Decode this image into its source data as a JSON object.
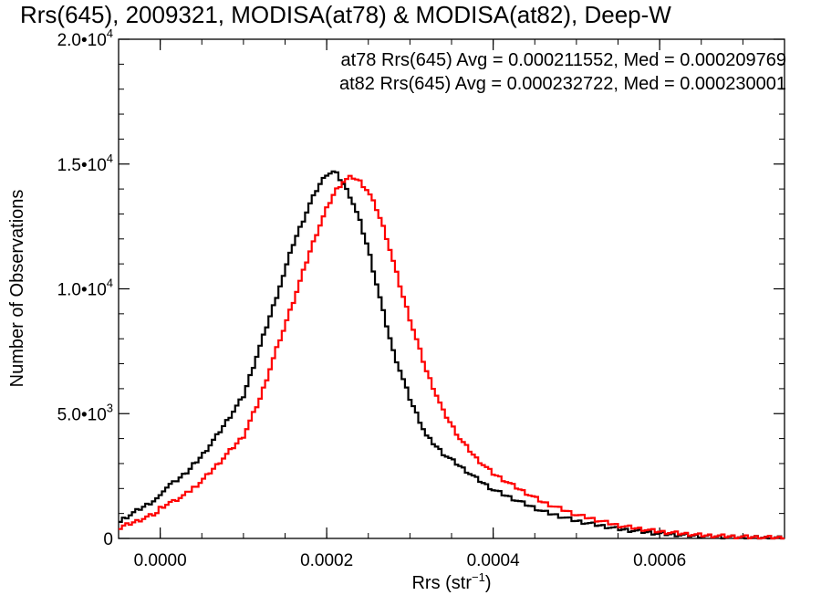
{
  "chart_data": {
    "type": "line",
    "title": "Rrs(645), 2009321, MODISA(at78) & MODISA(at82), Deep-W",
    "xlabel": "Rrs (str",
    "xlabel_sup": "−1",
    "xlabel_close": ")",
    "ylabel": "Number of Observations",
    "xlim": [
      -5e-05,
      0.00075
    ],
    "ylim": [
      0,
      20000
    ],
    "x_ticks": [
      {
        "value": 0.0,
        "label": "0.0000"
      },
      {
        "value": 0.0002,
        "label": "0.0002"
      },
      {
        "value": 0.0004,
        "label": "0.0004"
      },
      {
        "value": 0.0006,
        "label": "0.0006"
      }
    ],
    "y_ticks": [
      {
        "value": 0,
        "label": "0",
        "sup": ""
      },
      {
        "value": 5000,
        "label": "5.0•10",
        "sup": "3"
      },
      {
        "value": 10000,
        "label": "1.0•10",
        "sup": "4"
      },
      {
        "value": 15000,
        "label": "1.5•10",
        "sup": "4"
      },
      {
        "value": 20000,
        "label": "2.0•10",
        "sup": "4"
      }
    ],
    "legend": [
      {
        "text": "at78 Rrs(645) Avg = 0.000211552, Med = 0.000209769",
        "color": "#000000"
      },
      {
        "text": "at82 Rrs(645) Avg = 0.000232722, Med = 0.000230001",
        "color": "#ff0000"
      }
    ],
    "legend_position": "top-right",
    "series": [
      {
        "color": "#000000",
        "x": [
          -5e-05,
          -3e-05,
          0.0,
          3e-05,
          5e-05,
          7e-05,
          0.0001,
          0.00012,
          0.00014,
          0.00016,
          0.00017,
          0.00018,
          0.00019,
          0.0002,
          0.00021,
          0.00022,
          0.00023,
          0.00024,
          0.00025,
          0.00026,
          0.00027,
          0.00028,
          0.0003,
          0.00032,
          0.00034,
          0.00036,
          0.00038,
          0.0004,
          0.00043,
          0.00046,
          0.0005,
          0.00055,
          0.0006,
          0.00065,
          0.0007,
          0.00075
        ],
        "y": [
          800,
          1200,
          1800,
          2600,
          3300,
          4200,
          5700,
          7700,
          9700,
          11800,
          12600,
          13400,
          14100,
          14600,
          14700,
          14200,
          13600,
          12700,
          11600,
          10200,
          8800,
          7500,
          5600,
          4100,
          3400,
          2900,
          2400,
          1950,
          1500,
          1080,
          700,
          380,
          190,
          90,
          40,
          15
        ]
      },
      {
        "color": "#ff0000",
        "x": [
          -5e-05,
          -3e-05,
          0.0,
          3e-05,
          5e-05,
          7e-05,
          0.0001,
          0.00012,
          0.00014,
          0.00016,
          0.00018,
          0.00019,
          0.0002,
          0.00021,
          0.00022,
          0.00023,
          0.00024,
          0.00025,
          0.00026,
          0.00027,
          0.00028,
          0.00029,
          0.0003,
          0.00032,
          0.00034,
          0.00036,
          0.00038,
          0.0004,
          0.00043,
          0.00046,
          0.0005,
          0.00055,
          0.0006,
          0.00065,
          0.0007,
          0.00075
        ],
        "y": [
          550,
          800,
          1200,
          1750,
          2300,
          3000,
          4100,
          5600,
          7600,
          9500,
          11500,
          12400,
          13200,
          13900,
          14300,
          14500,
          14300,
          13900,
          13200,
          12300,
          11100,
          9900,
          8800,
          6700,
          5100,
          4000,
          3200,
          2600,
          2000,
          1450,
          950,
          520,
          270,
          130,
          60,
          20
        ]
      }
    ]
  }
}
